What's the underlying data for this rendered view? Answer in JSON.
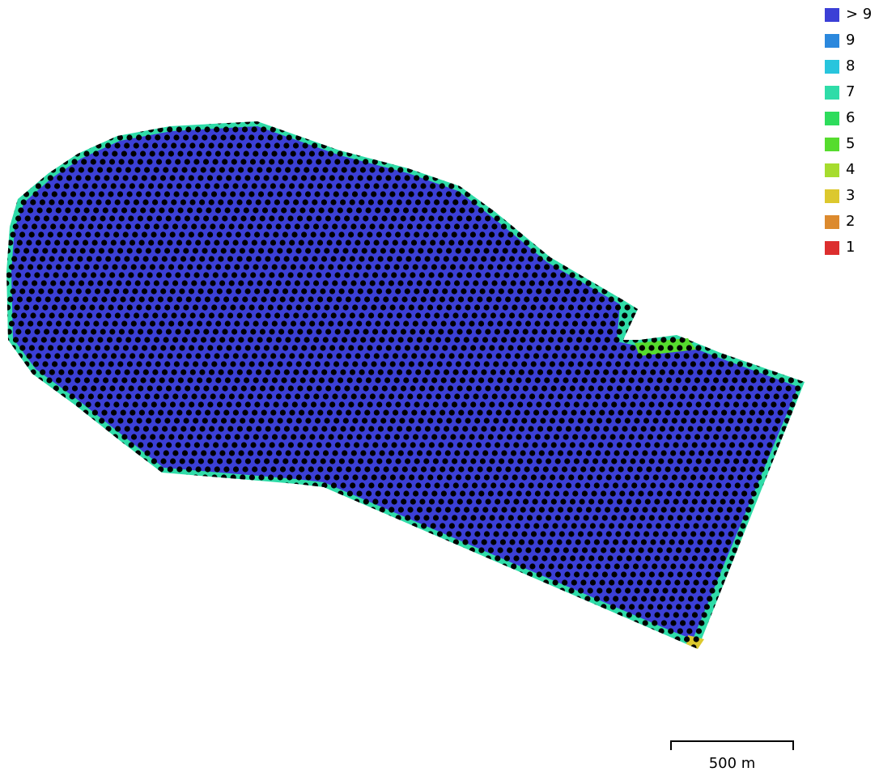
{
  "legend": {
    "items": [
      {
        "label": "> 9",
        "color": "#3b3fd6"
      },
      {
        "label": "9",
        "color": "#2b88dd"
      },
      {
        "label": "8",
        "color": "#28c5dd"
      },
      {
        "label": "7",
        "color": "#2fdca8"
      },
      {
        "label": "6",
        "color": "#2edc5c"
      },
      {
        "label": "5",
        "color": "#56dc2e"
      },
      {
        "label": "4",
        "color": "#a6dc2e"
      },
      {
        "label": "3",
        "color": "#dcc82e"
      },
      {
        "label": "2",
        "color": "#dc8a2e"
      },
      {
        "label": "1",
        "color": "#dc2e2e"
      }
    ]
  },
  "map": {
    "fill_color": "#3b3fd6",
    "edge_color": "#2fdca8",
    "point_color": "#000000"
  },
  "scalebar": {
    "label": "500 m"
  }
}
